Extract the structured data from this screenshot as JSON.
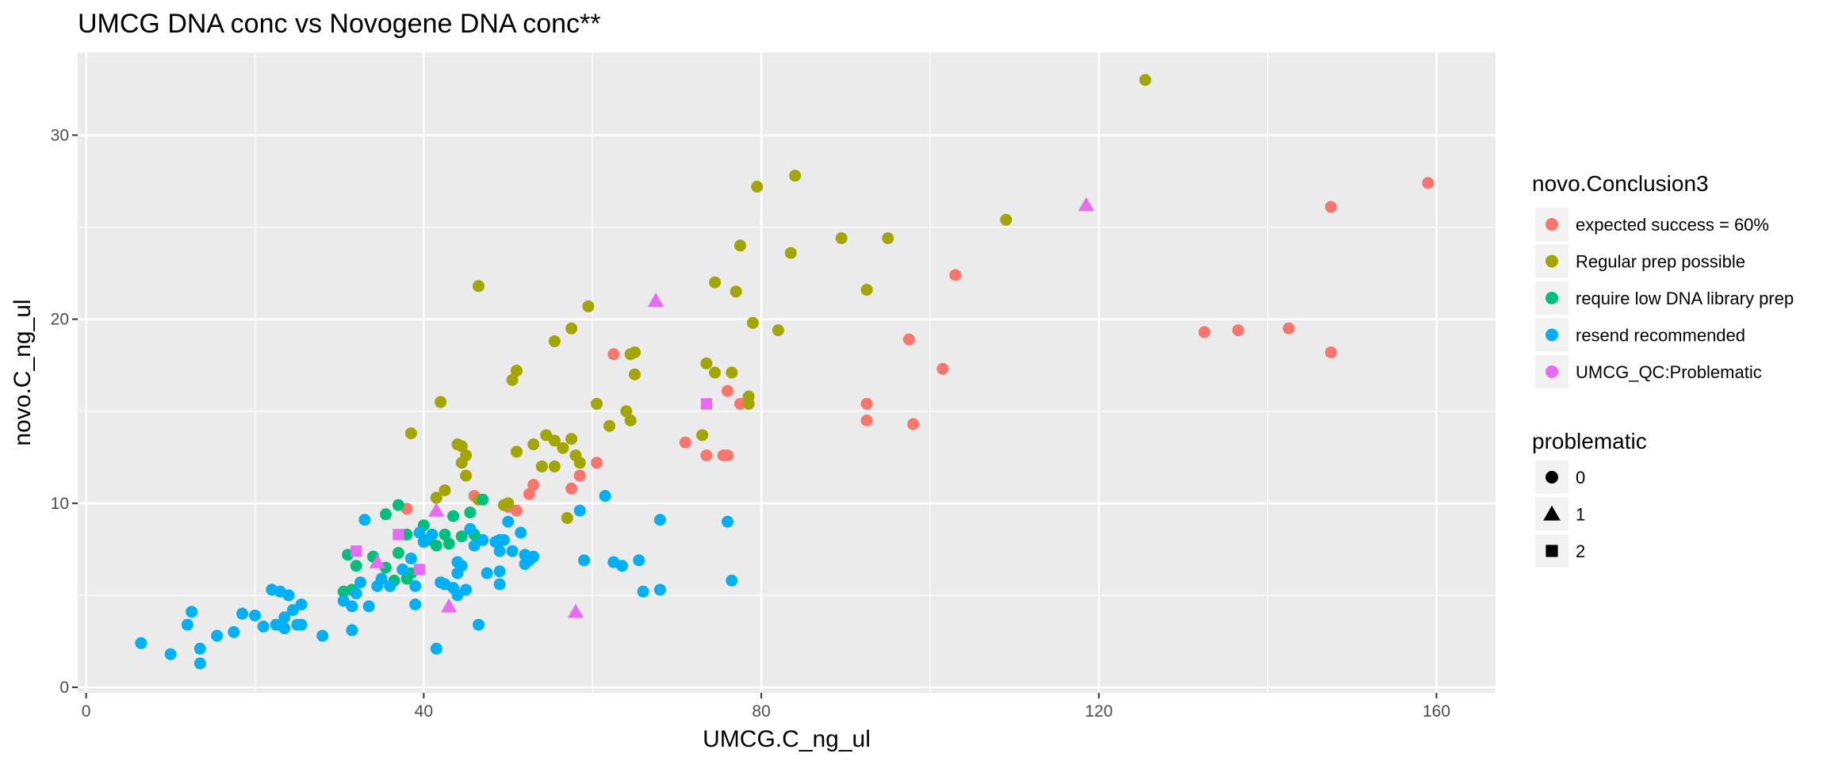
{
  "chart_data": {
    "type": "scatter",
    "title": "UMCG DNA conc vs Novogene DNA conc**",
    "xlabel": "UMCG.C_ng_ul",
    "ylabel": "novo.C_ng_ul",
    "xlim": [
      -1,
      167
    ],
    "ylim": [
      -0.3,
      34.5
    ],
    "x_ticks": [
      0,
      40,
      80,
      120,
      160
    ],
    "y_ticks": [
      0,
      10,
      20,
      30
    ],
    "x_tick_labels": [
      "0",
      "40",
      "80",
      "120",
      "160"
    ],
    "y_tick_labels": [
      "0",
      "10",
      "20",
      "30"
    ],
    "grid": true,
    "legend_position": "right",
    "colors": {
      "expected success = 60%": "#F8766D",
      "Regular prep possible": "#A3A500",
      "require low DNA library prep": "#00BF7D",
      "resend recommended": "#00B0F6",
      "UMCG_QC:Problematic": "#E76BF3"
    },
    "legend_color": {
      "title": "novo.Conclusion3",
      "entries": [
        "expected success = 60%",
        "Regular prep possible",
        "require low DNA library prep",
        "resend recommended",
        "UMCG_QC:Problematic"
      ]
    },
    "legend_shape": {
      "title": "problematic",
      "entries": [
        {
          "label": "0",
          "shape": "circle"
        },
        {
          "label": "1",
          "shape": "triangle"
        },
        {
          "label": "2",
          "shape": "square"
        }
      ]
    },
    "series": [
      {
        "name": "expected success = 60%",
        "shape": "circle",
        "points": [
          [
            159,
            27.4
          ],
          [
            147.5,
            26.1
          ],
          [
            103,
            22.4
          ],
          [
            142.5,
            19.5
          ],
          [
            136.5,
            19.4
          ],
          [
            132.5,
            19.3
          ],
          [
            147.5,
            18.2
          ],
          [
            97.5,
            18.9
          ],
          [
            101.5,
            17.3
          ],
          [
            62.5,
            18.1
          ],
          [
            76,
            16.1
          ],
          [
            77.5,
            15.4
          ],
          [
            92.5,
            15.4
          ],
          [
            92.5,
            14.5
          ],
          [
            98,
            14.3
          ],
          [
            71,
            13.3
          ],
          [
            73.5,
            12.6
          ],
          [
            75.5,
            12.6
          ],
          [
            76,
            12.6
          ],
          [
            60.5,
            12.2
          ],
          [
            58.5,
            11.5
          ],
          [
            53,
            11
          ],
          [
            57.5,
            10.8
          ],
          [
            52.5,
            10.5
          ],
          [
            46,
            10.4
          ],
          [
            50,
            9.8
          ],
          [
            51,
            9.6
          ],
          [
            38,
            9.7
          ]
        ]
      },
      {
        "name": "Regular prep possible",
        "shape": "circle",
        "points": [
          [
            125.5,
            33
          ],
          [
            84,
            27.8
          ],
          [
            79.5,
            27.2
          ],
          [
            109,
            25.4
          ],
          [
            89.5,
            24.4
          ],
          [
            95,
            24.4
          ],
          [
            77.5,
            24
          ],
          [
            83.5,
            23.6
          ],
          [
            74.5,
            22
          ],
          [
            46.5,
            21.8
          ],
          [
            77,
            21.5
          ],
          [
            92.5,
            21.6
          ],
          [
            59.5,
            20.7
          ],
          [
            79,
            19.8
          ],
          [
            82,
            19.4
          ],
          [
            57.5,
            19.5
          ],
          [
            55.5,
            18.8
          ],
          [
            65,
            18.2
          ],
          [
            64.5,
            18.1
          ],
          [
            73.5,
            17.6
          ],
          [
            51,
            17.2
          ],
          [
            74.5,
            17.1
          ],
          [
            76.5,
            17.1
          ],
          [
            65,
            17
          ],
          [
            50.5,
            16.7
          ],
          [
            78.5,
            15.8
          ],
          [
            42,
            15.5
          ],
          [
            78.5,
            15.4
          ],
          [
            60.5,
            15.4
          ],
          [
            64,
            15
          ],
          [
            62,
            14.2
          ],
          [
            64.5,
            14.5
          ],
          [
            38.5,
            13.8
          ],
          [
            54.5,
            13.7
          ],
          [
            57.5,
            13.5
          ],
          [
            73,
            13.7
          ],
          [
            55.5,
            13.4
          ],
          [
            56.5,
            13
          ],
          [
            53,
            13.2
          ],
          [
            44,
            13.2
          ],
          [
            44.5,
            13.1
          ],
          [
            51,
            12.8
          ],
          [
            45,
            12.6
          ],
          [
            58,
            12.6
          ],
          [
            44.5,
            12.2
          ],
          [
            54,
            12
          ],
          [
            55.5,
            12
          ],
          [
            58.5,
            12.2
          ],
          [
            45,
            11.5
          ],
          [
            42.5,
            10.7
          ],
          [
            41.5,
            10.3
          ],
          [
            49.5,
            9.9
          ],
          [
            50,
            10
          ],
          [
            57,
            9.2
          ],
          [
            46.5,
            10.2
          ]
        ]
      },
      {
        "name": "require low DNA library prep",
        "shape": "circle",
        "points": [
          [
            37,
            9.9
          ],
          [
            35.5,
            9.4
          ],
          [
            47,
            10.2
          ],
          [
            45.5,
            9.5
          ],
          [
            43.5,
            9.3
          ],
          [
            40,
            8.8
          ],
          [
            38,
            8.3
          ],
          [
            40.5,
            8
          ],
          [
            42.5,
            8.3
          ],
          [
            44.5,
            8.2
          ],
          [
            46,
            8.3
          ],
          [
            41.5,
            7.7
          ],
          [
            43,
            7.8
          ],
          [
            37,
            7.3
          ],
          [
            34,
            7.1
          ],
          [
            31,
            7.2
          ],
          [
            35.5,
            6.5
          ],
          [
            32,
            6.6
          ],
          [
            38.5,
            6.2
          ],
          [
            38,
            5.9
          ],
          [
            36.5,
            5.8
          ],
          [
            31.5,
            5.3
          ],
          [
            30.5,
            5.2
          ]
        ]
      },
      {
        "name": "resend recommended",
        "shape": "circle",
        "points": [
          [
            6.5,
            2.4
          ],
          [
            10,
            1.8
          ],
          [
            12,
            3.4
          ],
          [
            12.5,
            4.1
          ],
          [
            13.5,
            2.1
          ],
          [
            13.5,
            1.3
          ],
          [
            15.5,
            2.8
          ],
          [
            17.5,
            3
          ],
          [
            18.5,
            4
          ],
          [
            20,
            3.9
          ],
          [
            21,
            3.3
          ],
          [
            22,
            5.3
          ],
          [
            22.5,
            3.4
          ],
          [
            23,
            5.2
          ],
          [
            23.5,
            3.2
          ],
          [
            23.5,
            3.8
          ],
          [
            24,
            5
          ],
          [
            24.5,
            4.2
          ],
          [
            25,
            3.4
          ],
          [
            25.5,
            4.5
          ],
          [
            25.5,
            3.4
          ],
          [
            28,
            2.8
          ],
          [
            30.5,
            4.7
          ],
          [
            31.5,
            3.1
          ],
          [
            31.5,
            4.4
          ],
          [
            32,
            5.1
          ],
          [
            32.5,
            5.7
          ],
          [
            33.5,
            4.4
          ],
          [
            33,
            9.1
          ],
          [
            34.5,
            5.5
          ],
          [
            35,
            5.9
          ],
          [
            36,
            5.5
          ],
          [
            37.5,
            6.4
          ],
          [
            38.5,
            7
          ],
          [
            39,
            5.5
          ],
          [
            39,
            4.5
          ],
          [
            40,
            7.9
          ],
          [
            39.5,
            8.4
          ],
          [
            41,
            8.3
          ],
          [
            41.5,
            2.1
          ],
          [
            42,
            5.7
          ],
          [
            42.5,
            5.6
          ],
          [
            43.5,
            5.4
          ],
          [
            44,
            5
          ],
          [
            44,
            6.2
          ],
          [
            44.5,
            6.6
          ],
          [
            44,
            6.8
          ],
          [
            45,
            5.3
          ],
          [
            45.5,
            8.6
          ],
          [
            46,
            7.7
          ],
          [
            46.5,
            3.4
          ],
          [
            47,
            8
          ],
          [
            47.5,
            6.2
          ],
          [
            48.5,
            7.9
          ],
          [
            49,
            8
          ],
          [
            49,
            7.4
          ],
          [
            49.5,
            8
          ],
          [
            49,
            5.6
          ],
          [
            49,
            6.3
          ],
          [
            50,
            9
          ],
          [
            50.5,
            7.4
          ],
          [
            51.5,
            8.4
          ],
          [
            52,
            7.2
          ],
          [
            52,
            6.7
          ],
          [
            52.5,
            6.9
          ],
          [
            53,
            7.1
          ],
          [
            58.5,
            9.6
          ],
          [
            59,
            6.9
          ],
          [
            61.5,
            10.4
          ],
          [
            62.5,
            6.8
          ],
          [
            63.5,
            6.6
          ],
          [
            65.5,
            6.9
          ],
          [
            66,
            5.2
          ],
          [
            68,
            5.3
          ],
          [
            68,
            9.1
          ],
          [
            76,
            9
          ],
          [
            76.5,
            5.8
          ]
        ]
      },
      {
        "name": "UMCG_QC:Problematic",
        "shape": "mixed",
        "points": [
          [
            118.5,
            26.2,
            1
          ],
          [
            67.5,
            21,
            1
          ],
          [
            73.5,
            15.4,
            2
          ],
          [
            41.5,
            9.6,
            1
          ],
          [
            37,
            8.3,
            2
          ],
          [
            32,
            7.4,
            2
          ],
          [
            39.5,
            6.4,
            2
          ],
          [
            34.5,
            6.8,
            1
          ],
          [
            43,
            4.4,
            1
          ],
          [
            58,
            4.1,
            1
          ]
        ]
      }
    ]
  }
}
